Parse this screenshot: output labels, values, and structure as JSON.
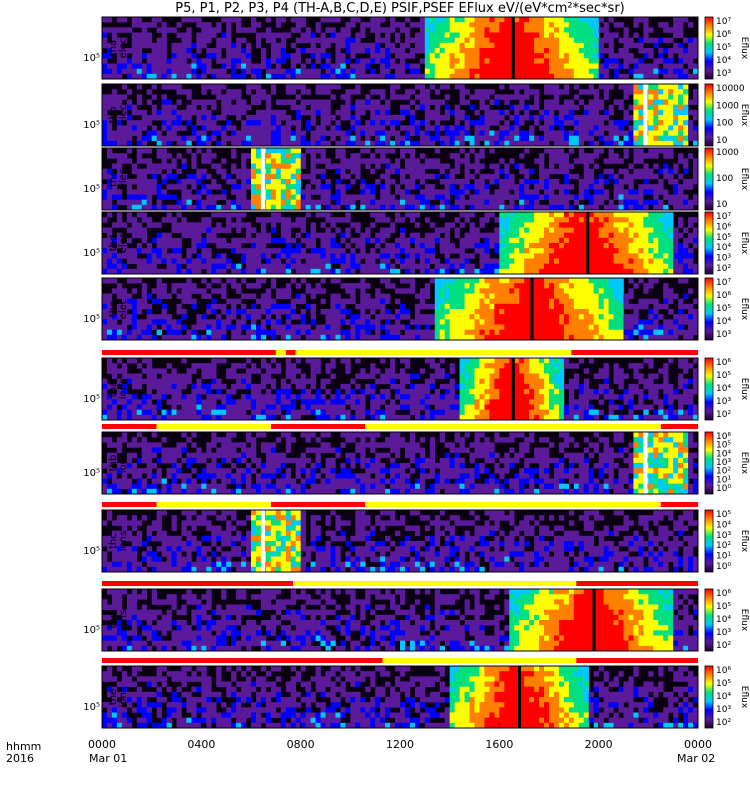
{
  "title": "P5, P1, P2, P3, P4 (TH-A,B,C,D,E) PSIF,PSEF EFlux eV/(eV*cm²*sec*sr)",
  "colorbar_label": "Eflux",
  "footer": {
    "hhmm_label": "hhmm",
    "year_label": "2016",
    "start_date": "Mar 01",
    "end_date": "Mar 02"
  },
  "chart_data": {
    "type": "heatmap",
    "x_unit": "hhmm (UT)",
    "x_ticks": [
      "0000",
      "0400",
      "0800",
      "1200",
      "1600",
      "2000",
      "0000"
    ],
    "x_range": [
      "2016-03-01 00:00",
      "2016-03-02 00:00"
    ],
    "colormap": [
      "#1e0030",
      "#5a1a9a",
      "#0000ff",
      "#00c8ff",
      "#00e080",
      "#ffff00",
      "#ff8000",
      "#ff0000"
    ],
    "panels": [
      {
        "probe": "tha",
        "species": "elec",
        "ylabel": [
          "tha",
          "elec"
        ],
        "ytick": "10⁵",
        "cbar_ticks": [
          "10⁷",
          "10⁶",
          "10⁵",
          "10⁴",
          "10³"
        ],
        "hot_hours": [
          13,
          20
        ],
        "dropout_hours": [],
        "flag_bar": []
      },
      {
        "probe": "thb",
        "species": "elec",
        "ylabel": [
          "thb",
          "elec"
        ],
        "ytick": "10⁵",
        "cbar_ticks": [
          "10000",
          "1000",
          "100",
          "10"
        ],
        "hot_hours": [],
        "dropout_hours": [
          21.8
        ],
        "flag_bar": []
      },
      {
        "probe": "thc",
        "species": "elec",
        "ylabel": [
          "thc",
          "elec"
        ],
        "ytick": "10⁵",
        "cbar_ticks": [
          "1000",
          "100",
          "10"
        ],
        "hot_hours": [],
        "dropout_hours": [
          6.4
        ],
        "flag_bar": []
      },
      {
        "probe": "thd",
        "species": "elec",
        "ylabel": [
          "thd",
          "elec"
        ],
        "ytick": "10⁵",
        "cbar_ticks": [
          "10⁷",
          "10⁶",
          "10⁵",
          "10⁴",
          "10³",
          "10²"
        ],
        "hot_hours": [
          16,
          23
        ],
        "dropout_hours": [],
        "flag_bar": []
      },
      {
        "probe": "the",
        "species": "elec",
        "ylabel": [
          "the",
          "elec"
        ],
        "ytick": "10⁵",
        "cbar_ticks": [
          "10⁷",
          "10⁶",
          "10⁵",
          "10⁴",
          "10³"
        ],
        "hot_hours": [
          13.5,
          21
        ],
        "dropout_hours": [],
        "flag_bar": []
      },
      {
        "probe": "tha",
        "species": "ions",
        "ylabel": [
          "tha",
          "ions"
        ],
        "ytick": "10⁵",
        "cbar_ticks": [
          "10⁶",
          "10⁵",
          "10⁴",
          "10³",
          "10²"
        ],
        "hot_hours": [
          14.5,
          18.5
        ],
        "dropout_hours": [],
        "flag_bar": [
          {
            "from": 0,
            "to": 7.0,
            "color": "#ff0000"
          },
          {
            "from": 7.0,
            "to": 7.4,
            "color": "#ffff00"
          },
          {
            "from": 7.4,
            "to": 7.8,
            "color": "#ff0000"
          },
          {
            "from": 7.8,
            "to": 18.9,
            "color": "#ffff00"
          },
          {
            "from": 18.9,
            "to": 24,
            "color": "#ff0000"
          }
        ]
      },
      {
        "probe": "thb",
        "species": "ions",
        "ylabel": [
          "thb",
          "ions"
        ],
        "ytick": "10⁵",
        "cbar_ticks": [
          "10⁶",
          "10⁵",
          "10⁴",
          "10³",
          "10²",
          "10¹",
          "10⁰"
        ],
        "hot_hours": [],
        "dropout_hours": [
          21.8
        ],
        "flag_bar": [
          {
            "from": 0,
            "to": 2.2,
            "color": "#ff0000"
          },
          {
            "from": 2.2,
            "to": 6.8,
            "color": "#ffff00"
          },
          {
            "from": 6.8,
            "to": 10.6,
            "color": "#ff0000"
          },
          {
            "from": 10.6,
            "to": 22.5,
            "color": "#ffff00"
          },
          {
            "from": 22.5,
            "to": 24,
            "color": "#ff0000"
          }
        ]
      },
      {
        "probe": "thc",
        "species": "ions",
        "ylabel": [
          "thc",
          "ions"
        ],
        "ytick": "10⁵",
        "cbar_ticks": [
          "10⁵",
          "10⁴",
          "10³",
          "10²",
          "10¹",
          "10⁰"
        ],
        "hot_hours": [],
        "dropout_hours": [
          6.4
        ],
        "flag_bar": [
          {
            "from": 0,
            "to": 2.2,
            "color": "#ff0000"
          },
          {
            "from": 2.2,
            "to": 6.8,
            "color": "#ffff00"
          },
          {
            "from": 6.8,
            "to": 10.6,
            "color": "#ff0000"
          },
          {
            "from": 10.6,
            "to": 22.5,
            "color": "#ffff00"
          },
          {
            "from": 22.5,
            "to": 24,
            "color": "#ff0000"
          }
        ]
      },
      {
        "probe": "thd",
        "species": "ions",
        "ylabel": [
          "thd",
          "ions"
        ],
        "ytick": "10⁵",
        "cbar_ticks": [
          "10⁶",
          "10⁵",
          "10⁴",
          "10³",
          "10²"
        ],
        "hot_hours": [
          16.5,
          23
        ],
        "dropout_hours": [],
        "flag_bar": [
          {
            "from": 0,
            "to": 7.7,
            "color": "#ff0000"
          },
          {
            "from": 7.7,
            "to": 19.1,
            "color": "#ffff00"
          },
          {
            "from": 19.1,
            "to": 24,
            "color": "#ff0000"
          }
        ]
      },
      {
        "probe": "the",
        "species": "ions",
        "ylabel": [
          "the",
          "ions"
        ],
        "ytick": "10⁵",
        "cbar_ticks": [
          "10⁶",
          "10⁵",
          "10⁴",
          "10³",
          "10²"
        ],
        "hot_hours": [
          14,
          19.5
        ],
        "dropout_hours": [],
        "flag_bar": [
          {
            "from": 0,
            "to": 11.3,
            "color": "#ff0000"
          },
          {
            "from": 11.3,
            "to": 19.1,
            "color": "#ffff00"
          },
          {
            "from": 19.1,
            "to": 24,
            "color": "#ff0000"
          }
        ]
      }
    ]
  }
}
